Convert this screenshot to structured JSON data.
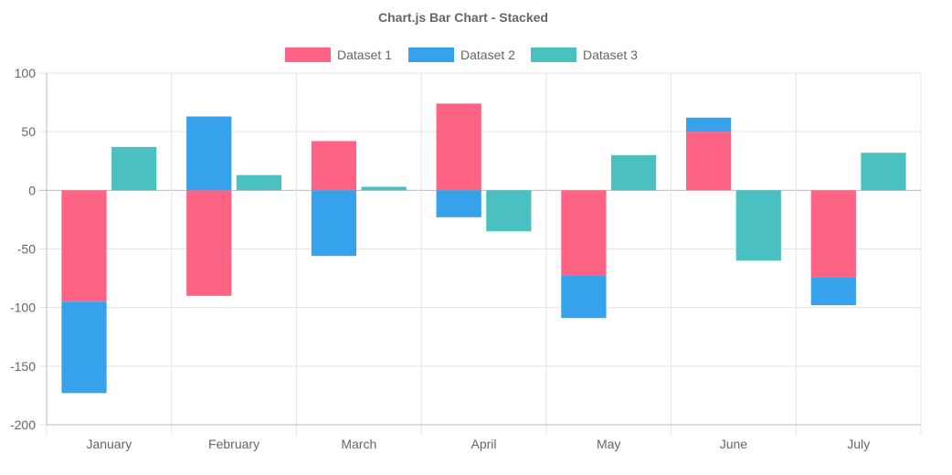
{
  "chart_data": {
    "type": "bar",
    "stacked": true,
    "title": "Chart.js Bar Chart - Stacked",
    "categories": [
      "January",
      "February",
      "March",
      "April",
      "May",
      "June",
      "July"
    ],
    "ylim": [
      -200,
      100
    ],
    "yticks": [
      "100",
      "50",
      "0",
      "-50",
      "-100",
      "-150",
      "-200"
    ],
    "grid": true,
    "legend": "top-center",
    "series": [
      {
        "name": "Dataset 1",
        "stack": "Stack 0",
        "color": "#ff6384",
        "values": [
          -95,
          -90,
          42,
          74,
          -73,
          50,
          -74
        ]
      },
      {
        "name": "Dataset 2",
        "stack": "Stack 0",
        "color": "#36a2eb",
        "values": [
          -78,
          63,
          -56,
          -23,
          -36,
          12,
          -24
        ]
      },
      {
        "name": "Dataset 3",
        "stack": "Stack 1",
        "color": "#4bc0c0",
        "values": [
          37,
          13,
          3,
          -35,
          30,
          -60,
          32
        ]
      }
    ]
  }
}
